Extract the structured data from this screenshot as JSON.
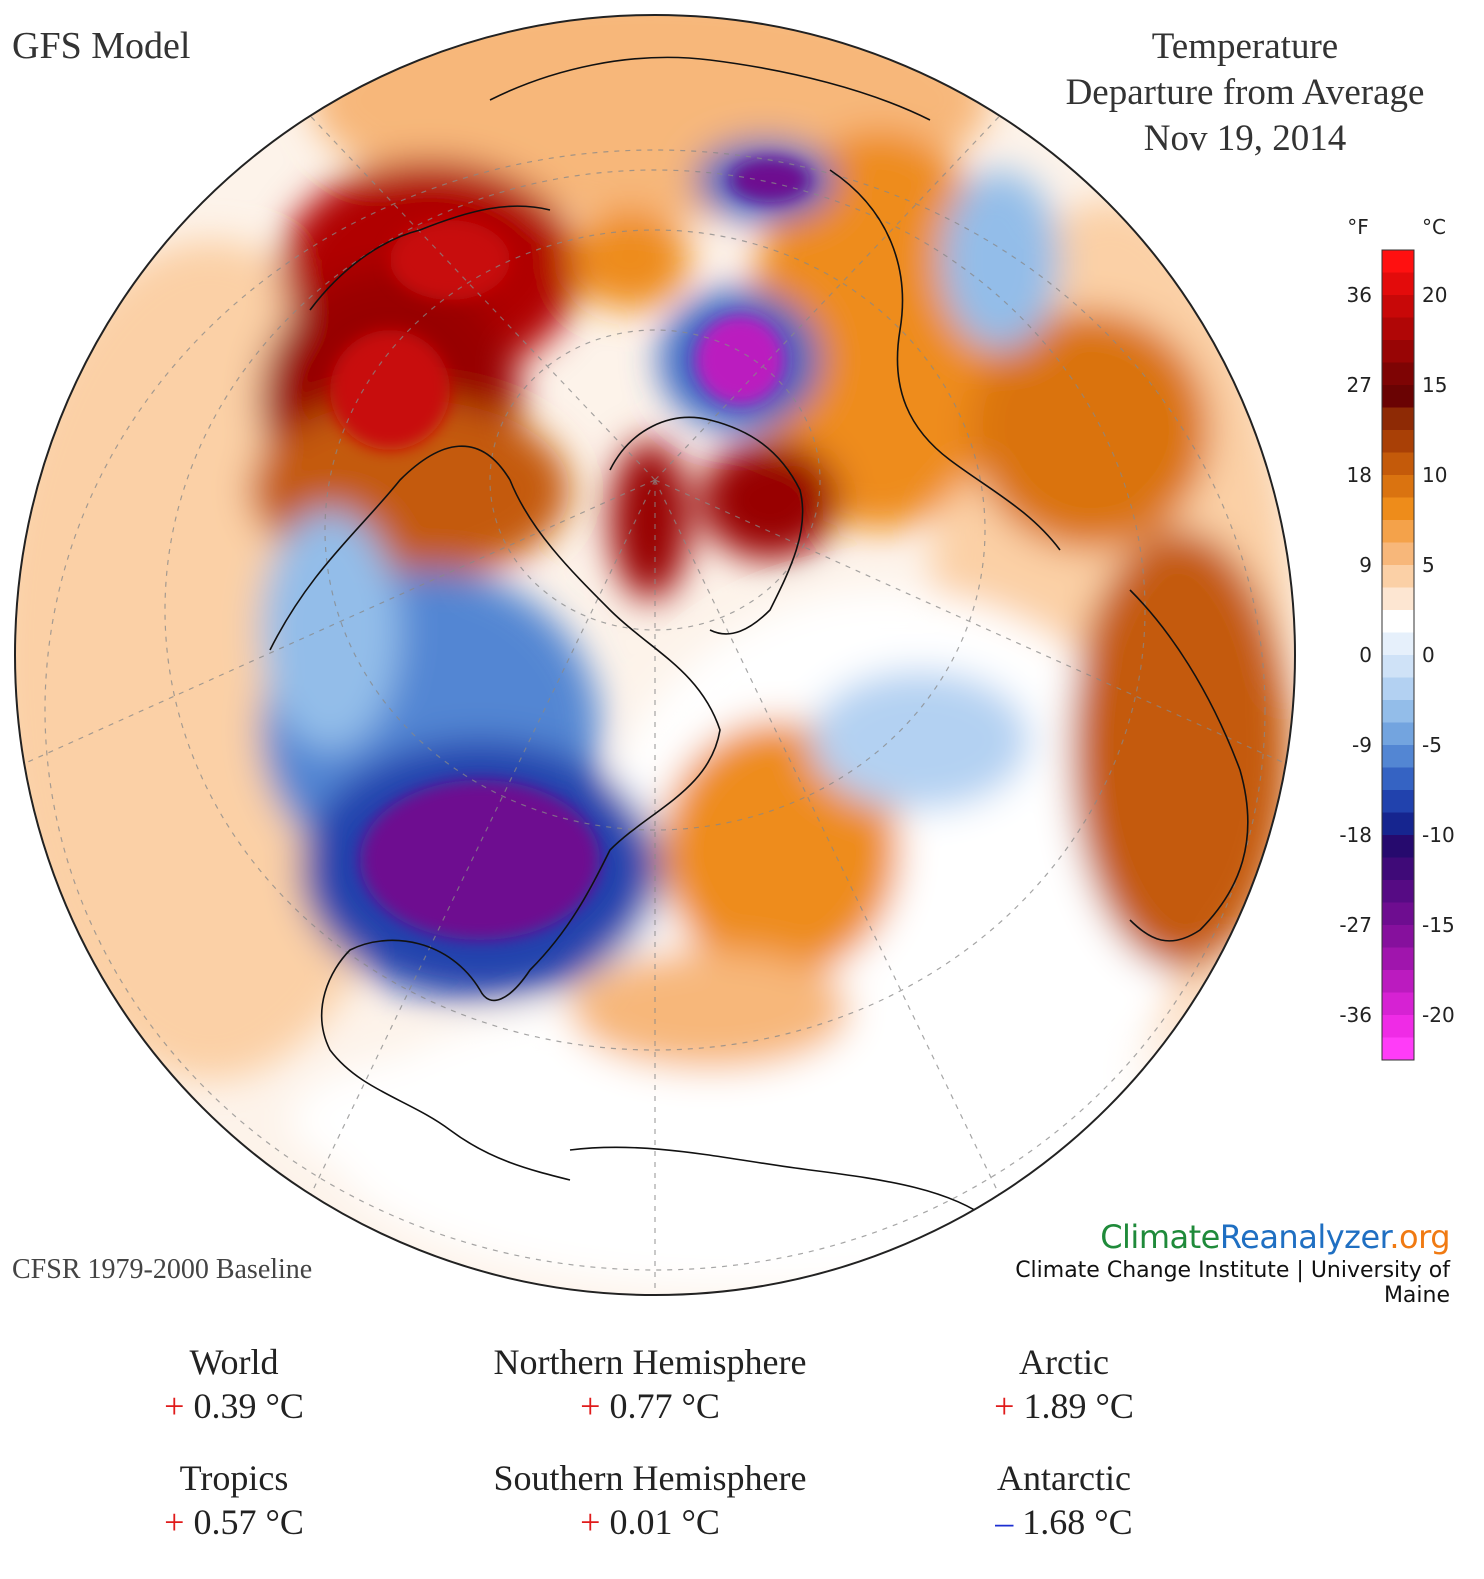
{
  "header": {
    "model": "GFS Model",
    "title_lines": [
      "Temperature",
      "Departure from Average",
      "Nov 19, 2014"
    ]
  },
  "footer": {
    "baseline": "CFSR 1979-2000 Baseline",
    "brand_climate": "Climate",
    "brand_reanalyzer": "Reanalyzer",
    "brand_org": ".org",
    "brand_sub": "Climate Change Institute | University of Maine"
  },
  "colorbar": {
    "unit_f": "°F",
    "unit_c": "°C",
    "f_ticks": [
      "36",
      "27",
      "18",
      "9",
      "0",
      "-9",
      "-18",
      "-27",
      "-36"
    ],
    "c_ticks": [
      "20",
      "15",
      "10",
      "5",
      "0",
      "-5",
      "-10",
      "-15",
      "-20"
    ],
    "colors": [
      "#ff1010",
      "#e30b0b",
      "#c80808",
      "#b00606",
      "#980505",
      "#7e0404",
      "#6a0303",
      "#8e2a05",
      "#a94006",
      "#c45a0a",
      "#da7310",
      "#ee8c1a",
      "#f4a24a",
      "#f7b77a",
      "#fbd0a6",
      "#fde6d2",
      "#ffffff",
      "#e6f0fb",
      "#cfe2f7",
      "#b3d1f2",
      "#93bde9",
      "#73a4df",
      "#5386d3",
      "#3563c3",
      "#2142ad",
      "#16258f",
      "#260a6e",
      "#3f0a78",
      "#560b84",
      "#6e0d90",
      "#86109d",
      "#a015ad",
      "#bb1bbf",
      "#d622d3",
      "#ef2be6",
      "#ff3cf8"
    ]
  },
  "map": {
    "description_colors": {
      "ocean_neutral": "#ffffff",
      "warm": "#f4a24a",
      "cold": "#2142ad"
    }
  },
  "stats": [
    {
      "name": "World",
      "sign": "+",
      "value": "0.39 °C"
    },
    {
      "name": "Northern Hemisphere",
      "sign": "+",
      "value": "0.77 °C"
    },
    {
      "name": "Arctic",
      "sign": "+",
      "value": "1.89 °C"
    },
    {
      "name": "Tropics",
      "sign": "+",
      "value": "0.57 °C"
    },
    {
      "name": "Southern Hemisphere",
      "sign": "+",
      "value": "0.01 °C"
    },
    {
      "name": "Antarctic",
      "sign": "–",
      "value": "1.68 °C"
    }
  ]
}
